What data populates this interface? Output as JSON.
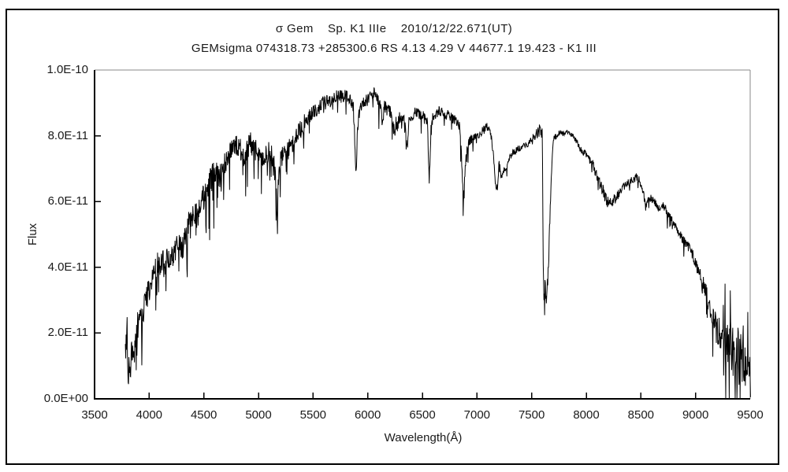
{
  "colors": {
    "background": "#ffffff",
    "spectrum_line": "#000000",
    "axis": "#000000",
    "frame_box": "#8a8a8a",
    "outer_border": "#000000"
  },
  "chart_data": {
    "type": "line",
    "title": "σ Gem    Sp. K1 IIIe    2010/12/22.671(UT)",
    "subtitle": "GEMsigma 074318.73 +285300.6 RS 4.13 4.29 V 44677.1 19.423 - K1 III",
    "xlabel": "Wavelength(Å)",
    "ylabel": "Flux",
    "xlim": [
      3500,
      9500
    ],
    "ylim": [
      0,
      1e-10
    ],
    "grid": false,
    "legend": null,
    "x_ticks": [
      3500,
      4000,
      4500,
      5000,
      5500,
      6000,
      6500,
      7000,
      7500,
      8000,
      8500,
      9000,
      9500
    ],
    "y_ticks": [
      {
        "value": 1e-10,
        "label": "1.0E-10"
      },
      {
        "value": 8e-11,
        "label": "8.0E-11"
      },
      {
        "value": 6e-11,
        "label": "6.0E-11"
      },
      {
        "value": 4e-11,
        "label": "4.0E-11"
      },
      {
        "value": 2e-11,
        "label": "2.0E-11"
      },
      {
        "value": 0.0,
        "label": "0.0E+00"
      }
    ],
    "series": [
      {
        "name": "sigma Gem spectrum",
        "x_unit": "Angstrom",
        "flux_scale": 1e-11,
        "x_range_of_data": [
          3782,
          9503
        ],
        "envelope": [
          [
            3782,
            1.2
          ],
          [
            3790,
            1.6
          ],
          [
            3796,
            2.85
          ],
          [
            3802,
            1.3
          ],
          [
            3815,
            0.85
          ],
          [
            3828,
            1.05
          ],
          [
            3840,
            1.5
          ],
          [
            3852,
            1.6
          ],
          [
            3865,
            1.3
          ],
          [
            3880,
            1.9
          ],
          [
            3895,
            2.3
          ],
          [
            3910,
            2.6
          ],
          [
            3925,
            2.45
          ],
          [
            3935,
            2.2
          ],
          [
            3950,
            2.8
          ],
          [
            3970,
            3.05
          ],
          [
            3990,
            3.2
          ],
          [
            4010,
            3.45
          ],
          [
            4035,
            3.8
          ],
          [
            4060,
            4.0
          ],
          [
            4085,
            4.15
          ],
          [
            4110,
            4.05
          ],
          [
            4135,
            4.2
          ],
          [
            4160,
            4.25
          ],
          [
            4185,
            4.15
          ],
          [
            4215,
            4.3
          ],
          [
            4250,
            4.6
          ],
          [
            4285,
            4.75
          ],
          [
            4310,
            4.55
          ],
          [
            4335,
            5.0
          ],
          [
            4360,
            5.3
          ],
          [
            4390,
            5.45
          ],
          [
            4420,
            5.55
          ],
          [
            4455,
            5.7
          ],
          [
            4490,
            6.05
          ],
          [
            4525,
            6.3
          ],
          [
            4560,
            6.6
          ],
          [
            4600,
            6.9
          ],
          [
            4635,
            6.75
          ],
          [
            4670,
            6.95
          ],
          [
            4705,
            7.2
          ],
          [
            4740,
            7.45
          ],
          [
            4775,
            7.65
          ],
          [
            4805,
            7.7
          ],
          [
            4835,
            7.55
          ],
          [
            4862,
            7.35
          ],
          [
            4895,
            7.55
          ],
          [
            4925,
            7.75
          ],
          [
            4955,
            7.7
          ],
          [
            4985,
            7.5
          ],
          [
            5015,
            7.35
          ],
          [
            5045,
            7.3
          ],
          [
            5075,
            7.45
          ],
          [
            5105,
            7.5
          ],
          [
            5135,
            7.3
          ],
          [
            5160,
            6.6
          ],
          [
            5172,
            5.65
          ],
          [
            5185,
            6.9
          ],
          [
            5210,
            7.35
          ],
          [
            5245,
            7.5
          ],
          [
            5280,
            7.6
          ],
          [
            5315,
            7.8
          ],
          [
            5350,
            8.0
          ],
          [
            5385,
            8.2
          ],
          [
            5420,
            8.4
          ],
          [
            5455,
            8.55
          ],
          [
            5490,
            8.7
          ],
          [
            5525,
            8.8
          ],
          [
            5560,
            8.9
          ],
          [
            5600,
            9.0
          ],
          [
            5640,
            9.05
          ],
          [
            5680,
            9.1
          ],
          [
            5720,
            9.2
          ],
          [
            5760,
            9.25
          ],
          [
            5800,
            9.2
          ],
          [
            5835,
            9.1
          ],
          [
            5868,
            8.9
          ],
          [
            5885,
            7.6
          ],
          [
            5893,
            6.75
          ],
          [
            5902,
            7.8
          ],
          [
            5915,
            8.6
          ],
          [
            5940,
            8.9
          ],
          [
            5970,
            9.0
          ],
          [
            6000,
            9.1
          ],
          [
            6030,
            9.2
          ],
          [
            6065,
            9.3
          ],
          [
            6095,
            9.1
          ],
          [
            6125,
            8.95
          ],
          [
            6135,
            8.2
          ],
          [
            6150,
            8.9
          ],
          [
            6180,
            8.8
          ],
          [
            6215,
            8.7
          ],
          [
            6248,
            8.0
          ],
          [
            6262,
            8.5
          ],
          [
            6295,
            8.55
          ],
          [
            6330,
            8.6
          ],
          [
            6362,
            7.6
          ],
          [
            6380,
            8.55
          ],
          [
            6415,
            8.65
          ],
          [
            6450,
            8.7
          ],
          [
            6485,
            8.65
          ],
          [
            6515,
            8.55
          ],
          [
            6545,
            8.45
          ],
          [
            6563,
            6.6
          ],
          [
            6580,
            8.4
          ],
          [
            6610,
            8.65
          ],
          [
            6645,
            8.75
          ],
          [
            6680,
            8.7
          ],
          [
            6715,
            8.65
          ],
          [
            6750,
            8.6
          ],
          [
            6785,
            8.5
          ],
          [
            6820,
            8.4
          ],
          [
            6845,
            8.25
          ],
          [
            6860,
            7.2
          ],
          [
            6875,
            6.0
          ],
          [
            6890,
            6.9
          ],
          [
            6905,
            7.5
          ],
          [
            6925,
            7.8
          ],
          [
            6950,
            7.9
          ],
          [
            6980,
            8.0
          ],
          [
            7010,
            8.05
          ],
          [
            7040,
            8.1
          ],
          [
            7070,
            8.2
          ],
          [
            7100,
            8.3
          ],
          [
            7125,
            8.1
          ],
          [
            7148,
            7.5
          ],
          [
            7168,
            6.5
          ],
          [
            7188,
            6.45
          ],
          [
            7203,
            7.3
          ],
          [
            7218,
            6.8
          ],
          [
            7238,
            6.85
          ],
          [
            7262,
            7.05
          ],
          [
            7290,
            7.25
          ],
          [
            7320,
            7.45
          ],
          [
            7350,
            7.55
          ],
          [
            7380,
            7.6
          ],
          [
            7410,
            7.65
          ],
          [
            7440,
            7.7
          ],
          [
            7470,
            7.75
          ],
          [
            7500,
            7.9
          ],
          [
            7530,
            8.0
          ],
          [
            7560,
            8.1
          ],
          [
            7585,
            8.2
          ],
          [
            7598,
            8.15
          ],
          [
            7604,
            4.6
          ],
          [
            7612,
            3.1
          ],
          [
            7620,
            3.9
          ],
          [
            7628,
            3.0
          ],
          [
            7636,
            2.9
          ],
          [
            7645,
            3.5
          ],
          [
            7655,
            4.1
          ],
          [
            7665,
            5.3
          ],
          [
            7678,
            6.6
          ],
          [
            7690,
            7.4
          ],
          [
            7702,
            7.9
          ],
          [
            7725,
            8.0
          ],
          [
            7755,
            8.1
          ],
          [
            7785,
            8.05
          ],
          [
            7815,
            8.1
          ],
          [
            7845,
            8.05
          ],
          [
            7875,
            8.0
          ],
          [
            7905,
            7.85
          ],
          [
            7935,
            7.65
          ],
          [
            7965,
            7.5
          ],
          [
            7995,
            7.45
          ],
          [
            8025,
            7.3
          ],
          [
            8060,
            7.1
          ],
          [
            8095,
            6.8
          ],
          [
            8130,
            6.5
          ],
          [
            8165,
            6.2
          ],
          [
            8200,
            5.95
          ],
          [
            8235,
            6.0
          ],
          [
            8268,
            6.1
          ],
          [
            8300,
            6.25
          ],
          [
            8335,
            6.45
          ],
          [
            8370,
            6.55
          ],
          [
            8405,
            6.6
          ],
          [
            8440,
            6.7
          ],
          [
            8465,
            6.75
          ],
          [
            8492,
            6.6
          ],
          [
            8518,
            6.35
          ],
          [
            8542,
            5.9
          ],
          [
            8568,
            6.05
          ],
          [
            8595,
            6.1
          ],
          [
            8620,
            6.0
          ],
          [
            8645,
            5.9
          ],
          [
            8665,
            5.8
          ],
          [
            8692,
            5.9
          ],
          [
            8720,
            5.8
          ],
          [
            8750,
            5.6
          ],
          [
            8780,
            5.45
          ],
          [
            8810,
            5.3
          ],
          [
            8840,
            5.1
          ],
          [
            8872,
            4.9
          ],
          [
            8905,
            4.75
          ],
          [
            8940,
            4.6
          ],
          [
            8970,
            4.4
          ],
          [
            9000,
            4.1
          ],
          [
            9035,
            3.85
          ],
          [
            9070,
            3.5
          ],
          [
            9105,
            3.1
          ],
          [
            9140,
            2.7
          ],
          [
            9175,
            2.35
          ],
          [
            9210,
            2.05
          ],
          [
            9245,
            1.9
          ],
          [
            9280,
            1.75
          ],
          [
            9315,
            1.6
          ],
          [
            9350,
            1.45
          ],
          [
            9385,
            1.4
          ],
          [
            9420,
            1.35
          ],
          [
            9455,
            1.25
          ],
          [
            9480,
            1.15
          ],
          [
            9500,
            1.0
          ]
        ],
        "noise_amplitude": [
          [
            3782,
            0.5
          ],
          [
            3900,
            0.42
          ],
          [
            4100,
            0.36
          ],
          [
            4300,
            0.38
          ],
          [
            4500,
            0.44
          ],
          [
            4700,
            0.4
          ],
          [
            4900,
            0.36
          ],
          [
            5100,
            0.34
          ],
          [
            5300,
            0.3
          ],
          [
            5500,
            0.24
          ],
          [
            5700,
            0.2
          ],
          [
            5900,
            0.2
          ],
          [
            6100,
            0.2
          ],
          [
            6300,
            0.19
          ],
          [
            6500,
            0.18
          ],
          [
            6700,
            0.16
          ],
          [
            6900,
            0.15
          ],
          [
            7100,
            0.13
          ],
          [
            7300,
            0.11
          ],
          [
            7500,
            0.1
          ],
          [
            7620,
            0.3
          ],
          [
            7700,
            0.1
          ],
          [
            7850,
            0.08
          ],
          [
            8000,
            0.1
          ],
          [
            8150,
            0.22
          ],
          [
            8300,
            0.13
          ],
          [
            8500,
            0.12
          ],
          [
            8700,
            0.12
          ],
          [
            8900,
            0.14
          ],
          [
            9050,
            0.2
          ],
          [
            9150,
            0.35
          ],
          [
            9250,
            0.6
          ],
          [
            9330,
            0.8
          ],
          [
            9420,
            0.95
          ],
          [
            9500,
            0.9
          ]
        ],
        "notable_absorption_dips_angstrom": [
          3933,
          4308,
          5172,
          5893,
          6563,
          6875,
          7180,
          7620,
          8542,
          8662
        ]
      }
    ]
  }
}
